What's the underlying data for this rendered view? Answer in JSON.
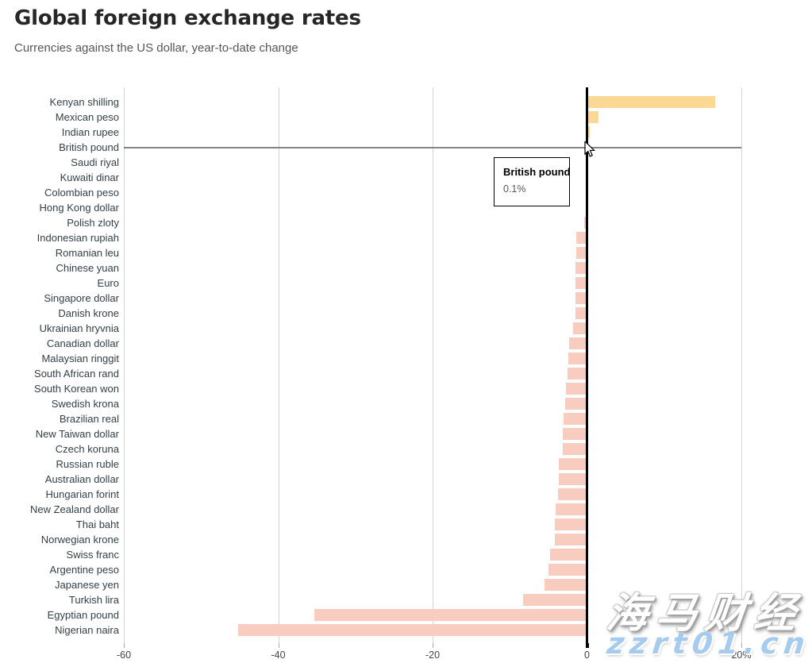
{
  "header": {
    "title": "Global foreign exchange rates",
    "subtitle": "Currencies against the US dollar, year-to-date change"
  },
  "chart_data": {
    "type": "bar",
    "orientation": "horizontal",
    "title": "Global foreign exchange rates",
    "subtitle": "Currencies against the US dollar, year-to-date change",
    "unit": "%",
    "xlabel": "Year-to-date change vs US dollar (%)",
    "ylabel": "Currency",
    "grid": true,
    "legend": false,
    "axis": {
      "range": [
        -60,
        20
      ],
      "ticks": [
        -60,
        -40,
        -20,
        0,
        20
      ],
      "tick_labels": [
        "-60",
        "-40",
        "-20",
        "0",
        "20%"
      ]
    },
    "categories": [
      "Kenyan shilling",
      "Mexican peso",
      "Indian rupee",
      "British pound",
      "Saudi riyal",
      "Kuwaiti dinar",
      "Colombian peso",
      "Hong Kong dollar",
      "Polish zloty",
      "Indonesian rupiah",
      "Romanian leu",
      "Chinese yuan",
      "Euro",
      "Singapore dollar",
      "Danish krone",
      "Ukrainian hryvnia",
      "Canadian dollar",
      "Malaysian ringgit",
      "South African rand",
      "South Korean won",
      "Swedish krona",
      "Brazilian real",
      "New Taiwan dollar",
      "Czech koruna",
      "Russian ruble",
      "Australian dollar",
      "Hungarian forint",
      "New Zealand dollar",
      "Thai baht",
      "Norwegian krone",
      "Swiss franc",
      "Argentine peso",
      "Japanese yen",
      "Turkish lira",
      "Egyptian pound",
      "Nigerian naira"
    ],
    "values": [
      16.6,
      1.5,
      0.4,
      0.1,
      0.0,
      0.0,
      -0.1,
      -0.2,
      -0.4,
      -1.4,
      -1.4,
      -1.5,
      -1.5,
      -1.5,
      -1.5,
      -1.8,
      -2.3,
      -2.4,
      -2.5,
      -2.7,
      -2.8,
      -3.0,
      -3.1,
      -3.1,
      -3.6,
      -3.7,
      -3.8,
      -4.1,
      -4.2,
      -4.2,
      -4.8,
      -5.0,
      -5.5,
      -8.3,
      -35.3,
      -45.2
    ],
    "colors": {
      "positive_bar": "#fbd995",
      "negative_bar": "#f8cdbf",
      "zero_line": "#000000",
      "gridline": "#d3d3d3",
      "hover_line": "#858585",
      "label_text": "#333f48",
      "tick_text": "#454545"
    }
  },
  "hover": {
    "category": "British pound",
    "tooltip_title": "British pound",
    "tooltip_value": "0.1%"
  },
  "icons": {
    "cursor": "arrow-pointer"
  },
  "watermark": {
    "line1": "海马财经",
    "line2": "zzrt01.cn",
    "line2_color": "#a5cbee"
  }
}
